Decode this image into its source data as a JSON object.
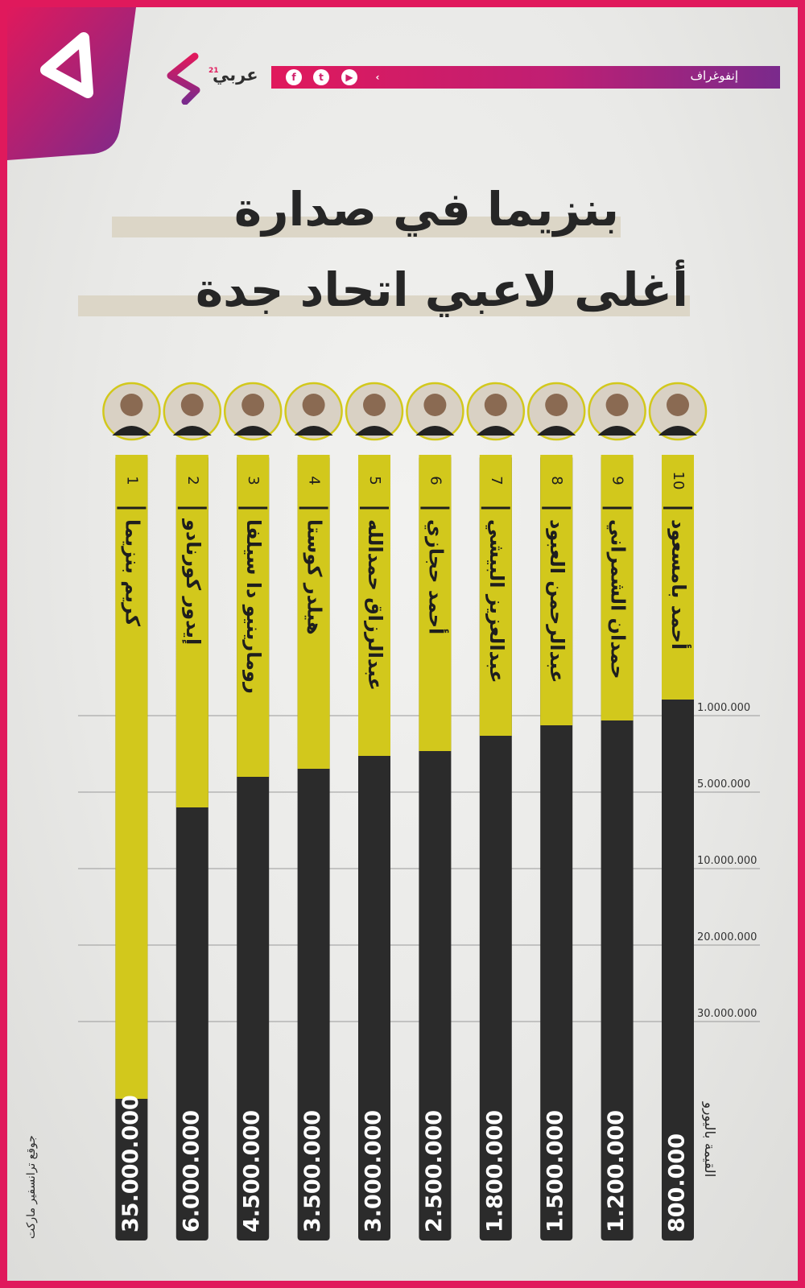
{
  "header": {
    "section_label": "إنفوغراف",
    "logo_text": "عربي",
    "logo_sup": "21",
    "social_icons": [
      "facebook-icon",
      "twitter-icon",
      "youtube-icon",
      "arabi21-icon"
    ]
  },
  "title": {
    "line1": "بنزيما في صدارة",
    "line2": "أغلى لاعبي اتحاد جدة"
  },
  "colors": {
    "accent": "#e0195c",
    "purple": "#7a2a8c",
    "bar_yellow": "#d2c81c",
    "bar_dark": "#2b2b2b"
  },
  "source": "جوقع ترانسفير ماركت",
  "unit_label": "القيمة باليورو",
  "chart_data": {
    "type": "bar",
    "orientation": "vertical",
    "categories": [
      "كريم بنزيما",
      "إيدور كورنادو",
      "رومارينيو دا سيلفا",
      "هيلدر كوستا",
      "عبدالرزاق حمدالله",
      "أحمد حجازي",
      "عبدالعزيز البيشي",
      "عبدالرحمن العبود",
      "حمدان الشمراني",
      "أحمد بامسعود"
    ],
    "ranks": [
      "1",
      "2",
      "3",
      "4",
      "5",
      "6",
      "7",
      "8",
      "9",
      "10"
    ],
    "values": [
      35000000,
      6000000,
      4500000,
      3500000,
      3000000,
      2500000,
      1800000,
      1500000,
      1200000,
      800000
    ],
    "value_labels": [
      "35.000.000",
      "6.000.000",
      "4.500.000",
      "3.500.000",
      "3.000.000",
      "2.500.000",
      "1.800.000",
      "1.500.000",
      "1.200.000",
      "800.000"
    ],
    "axis_ticks": [
      {
        "value": 1000000,
        "label": "1.000.000"
      },
      {
        "value": 5000000,
        "label": "5.000.000"
      },
      {
        "value": 10000000,
        "label": "10.000.000"
      },
      {
        "value": 20000000,
        "label": "20.000.000"
      },
      {
        "value": 30000000,
        "label": "30.000.000"
      }
    ],
    "grid": true,
    "title": "بنزيما في صدارة أغلى لاعبي اتحاد جدة"
  }
}
